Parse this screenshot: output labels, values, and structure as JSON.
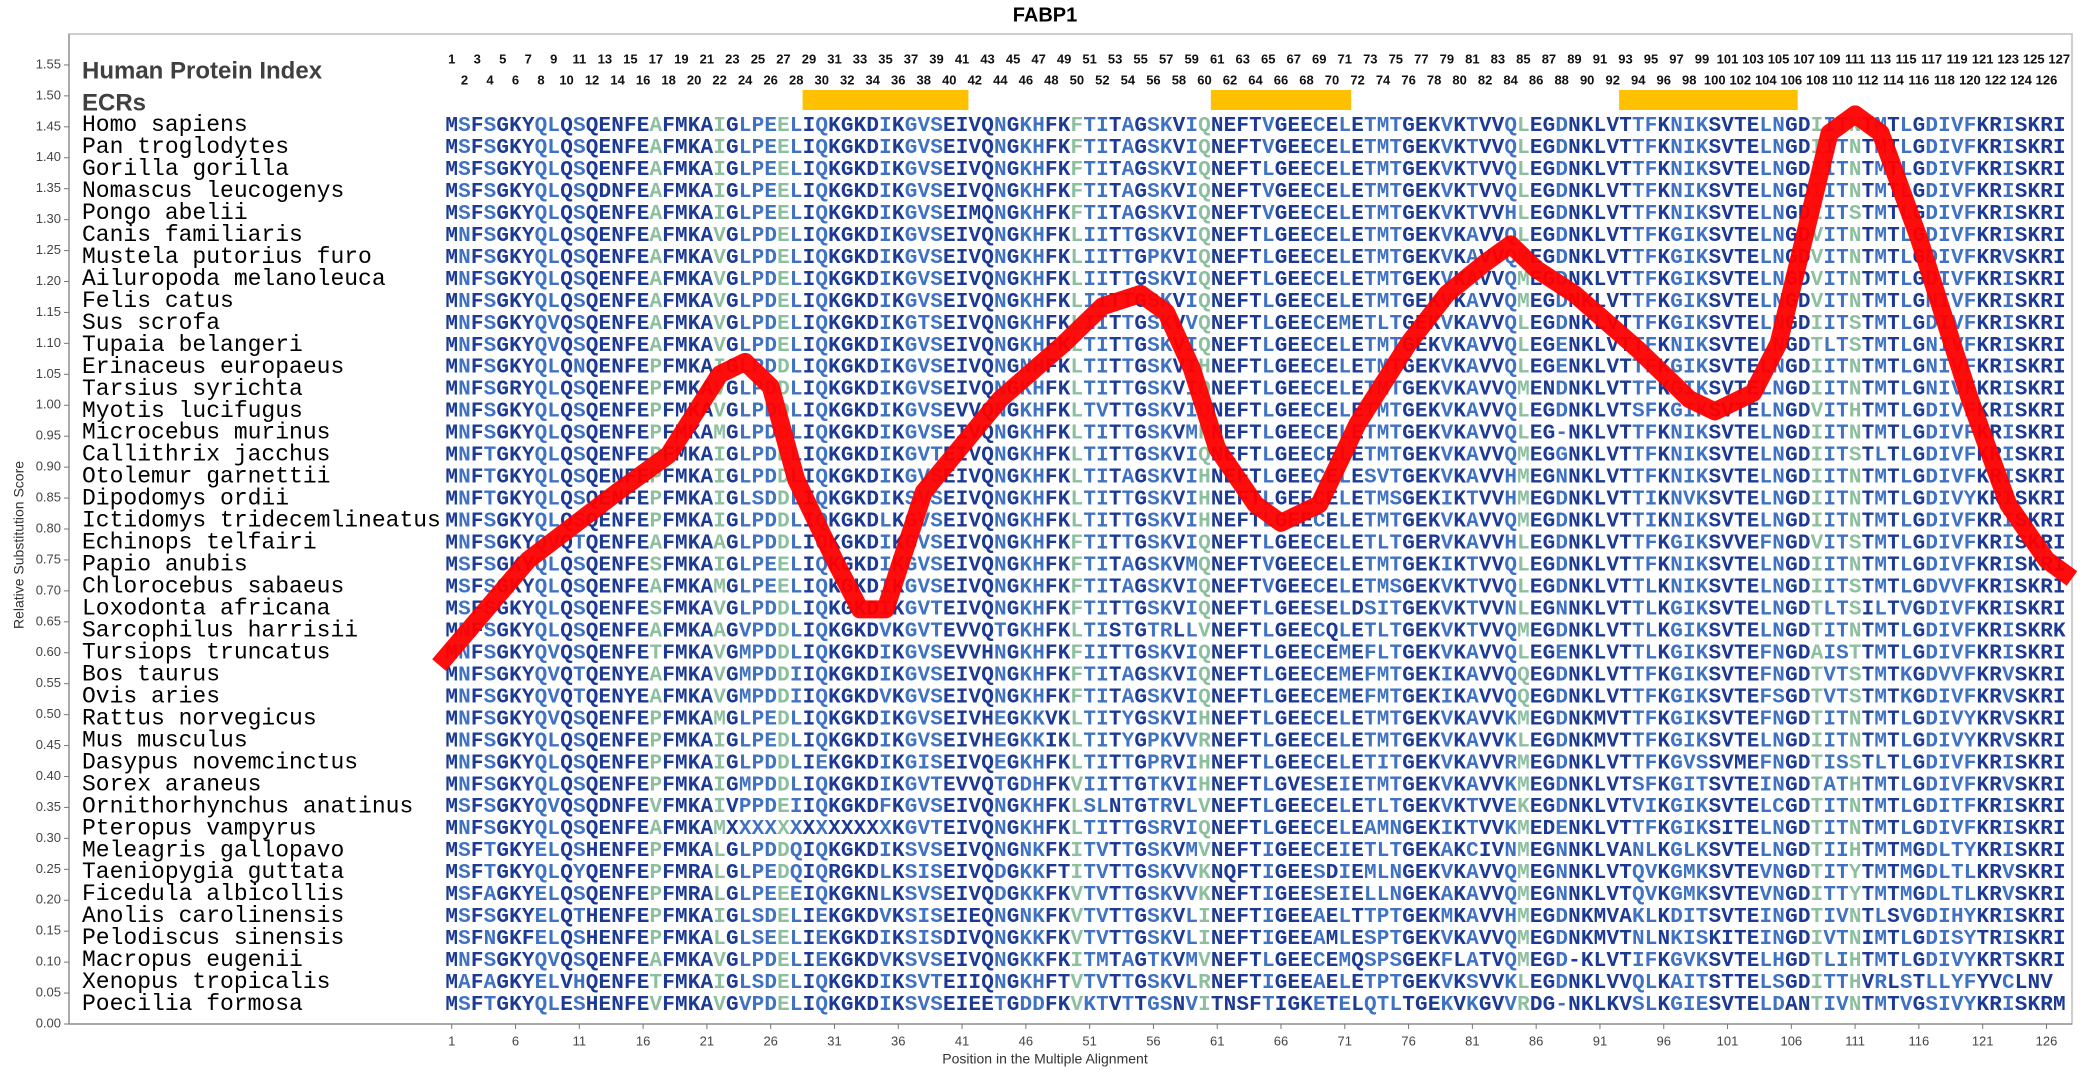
{
  "chart_data": {
    "type": "line",
    "title": "FABP1",
    "heading": "Human Protein Index",
    "ecr_label": "ECRs",
    "xlabel": "Position in the Multiple Alignment",
    "ylabel": "Relative Substitution Score",
    "color": "#ff0000",
    "ecr_color": "#ffc000",
    "conservation_colors": [
      "#1c3a94",
      "#3f72c2",
      "#8cbf9e"
    ],
    "xlim": [
      -29,
      128
    ],
    "ylim": [
      0,
      1.6
    ],
    "xticks": [
      1,
      6,
      11,
      16,
      21,
      26,
      31,
      36,
      41,
      46,
      51,
      56,
      61,
      66,
      71,
      76,
      81,
      86,
      91,
      96,
      101,
      106,
      111,
      116,
      121,
      126
    ],
    "yticks": [
      {
        "value": 0,
        "label": "0.00"
      },
      {
        "value": 0.05,
        "label": "0.05"
      },
      {
        "value": 0.1,
        "label": "0.10"
      },
      {
        "value": 0.15,
        "label": "0.15"
      },
      {
        "value": 0.2,
        "label": "0.20"
      },
      {
        "value": 0.25,
        "label": "0.25"
      },
      {
        "value": 0.3,
        "label": "0.30"
      },
      {
        "value": 0.35,
        "label": "0.35"
      },
      {
        "value": 0.4,
        "label": "0.40"
      },
      {
        "value": 0.45,
        "label": "0.45"
      },
      {
        "value": 0.5,
        "label": "0.50"
      },
      {
        "value": 0.55,
        "label": "0.55"
      },
      {
        "value": 0.6,
        "label": "0.60"
      },
      {
        "value": 0.65,
        "label": "0.65"
      },
      {
        "value": 0.7,
        "label": "0.70"
      },
      {
        "value": 0.75,
        "label": "0.75"
      },
      {
        "value": 0.8,
        "label": "0.80"
      },
      {
        "value": 0.85,
        "label": "0.85"
      },
      {
        "value": 0.9,
        "label": "0.90"
      },
      {
        "value": 0.95,
        "label": "0.95"
      },
      {
        "value": 1,
        "label": "1.00"
      },
      {
        "value": 1.05,
        "label": "1.05"
      },
      {
        "value": 1.1,
        "label": "1.10"
      },
      {
        "value": 1.15,
        "label": "1.15"
      },
      {
        "value": 1.2,
        "label": "1.20"
      },
      {
        "value": 1.25,
        "label": "1.25"
      },
      {
        "value": 1.3,
        "label": "1.30"
      },
      {
        "value": 1.35,
        "label": "1.35"
      },
      {
        "value": 1.4,
        "label": "1.40"
      },
      {
        "value": 1.45,
        "label": "1.45"
      },
      {
        "value": 1.5,
        "label": "1.50"
      },
      {
        "value": 1.55,
        "label": "1.55"
      }
    ],
    "positions": [
      1,
      2,
      3,
      4,
      5,
      6,
      7,
      8,
      9,
      10,
      11,
      12,
      13,
      14,
      15,
      16,
      17,
      18,
      19,
      20,
      21,
      22,
      23,
      24,
      25,
      26,
      27,
      28,
      29,
      30,
      31,
      32,
      33,
      34,
      35,
      36,
      37,
      38,
      39,
      40,
      41,
      42,
      43,
      44,
      45,
      46,
      47,
      48,
      49,
      50,
      51,
      52,
      53,
      54,
      55,
      56,
      57,
      58,
      59,
      60,
      61,
      62,
      63,
      64,
      65,
      66,
      67,
      68,
      69,
      70,
      71,
      72,
      73,
      74,
      75,
      76,
      77,
      78,
      79,
      80,
      81,
      82,
      83,
      84,
      85,
      86,
      87,
      88,
      89,
      90,
      91,
      92,
      93,
      94,
      95,
      96,
      97,
      98,
      99,
      100,
      101,
      102,
      103,
      104,
      105,
      106,
      107,
      108,
      109,
      110,
      111,
      112,
      113,
      114,
      115,
      116,
      117,
      118,
      119,
      120,
      121,
      122,
      123,
      124,
      125,
      126,
      127
    ],
    "ecrs": [
      {
        "start": 29,
        "end": 41
      },
      {
        "start": 61,
        "end": 71
      },
      {
        "start": 93,
        "end": 106
      }
    ],
    "x": [
      0,
      7,
      14,
      18,
      22,
      24,
      26,
      28,
      31,
      33,
      35,
      38,
      44,
      49,
      52,
      55,
      57,
      59,
      61,
      64,
      66,
      69,
      72,
      76,
      79,
      82,
      84,
      86,
      89,
      94,
      98,
      100,
      103,
      105,
      107,
      109,
      111,
      113,
      116,
      120,
      123,
      126,
      128
    ],
    "values": [
      0.58,
      0.75,
      0.86,
      0.92,
      1.05,
      1.07,
      1.03,
      0.88,
      0.75,
      0.67,
      0.67,
      0.86,
      1.01,
      1.1,
      1.16,
      1.18,
      1.15,
      1.06,
      0.93,
      0.84,
      0.81,
      0.84,
      0.97,
      1.1,
      1.18,
      1.23,
      1.26,
      1.22,
      1.18,
      1.09,
      1.01,
      0.99,
      1.02,
      1.1,
      1.27,
      1.44,
      1.47,
      1.44,
      1.27,
      1.01,
      0.84,
      0.75,
      0.72
    ],
    "species": [
      {
        "name": "Homo sapiens",
        "sequence": "MSFSGKYQLQSQENFEAFMKAIGLPEELIQKGKDIKGVSEIVQNGKHFKFTITAGSKVIQNEFTVGEECELETMTGEKVKTVVQLEGDNKLVTTFKNIKSVTELNGDIITNTMTLGDIVFKRISKRI"
      },
      {
        "name": "Pan troglodytes",
        "sequence": "MSFSGKYQLQSQENFEAFMKAIGLPEELIQKGKDIKGVSEIVQNGKHFKFTITAGSKVIQNEFTVGEECELETMTGEKVKTVVQLEGDNKLVTTFKNIKSVTELNGDIITNTMTLGDIVFKRISKRI"
      },
      {
        "name": "Gorilla gorilla",
        "sequence": "MSFSGKYQLQSQENFEAFMKAIGLPEELIQKGKDIKGVSEIVQNGKHFKFTITAGSKVIQNEFTLGEECELETMTGEKVKTVVQLEGDNKLVTTFKNIKSVTELNGDIITNTMTLGDIVFKRISKRI"
      },
      {
        "name": "Nomascus leucogenys",
        "sequence": "MSFSGKYQLQSQDNFEAFMKAIGLPEELIQKGKDIKGVSEIVQNGKHFKFTITAGSKVIQNEFTVGEECELETMTGEKVKTVVQLEGDNKLVTTFKNIKSVTELNGDIITNTMTLGDIVFKRISKRI"
      },
      {
        "name": "Pongo abelii",
        "sequence": "MSFSGKYQLQSQENFEAFMKAIGLPEELIQKGKDIKGVSEIMQNGKHFKFTITAGSKVIQNEFTVGEECELETMTGEKVKTVVHLEGDNKLVTTFKNIKSVTELNGDIITSTMTLGDIVFKRISKRI"
      },
      {
        "name": "Canis familiaris",
        "sequence": "MNFSGKYQLQSQENFEAFMKAVGLPDELIQKGKDIKGVSEIVQNGKHFKLIITTGSKVIQNEFTLGEECELETMTGEKVKAVVQLEGDNKLVTTFKGIKSVTELNGDVITNTMTLGDIVFKRISKRI"
      },
      {
        "name": "Mustela putorius furo",
        "sequence": "MNFSGKYQLQSQENFEAFMKAVGLPDELIQKGKDIKGVSEIVQNGKHFKLIITTGPKVIQNEFTLGEECELETMTGEKVKAVVQMEGDNKLVTTFKGIKSVTELNGDVITNTMTLGDIVFKRVSKRI"
      },
      {
        "name": "Ailuropoda melanoleuca",
        "sequence": "MNFSGKYQLQSQENFEAFMKAVGLPDELIQKGKDIKGVSEIVQNGKHFKLIITTGSKVIQNEFTLGEECELETMTGEKVKAVVQMEGDNKLVTTFKGIKSVTELNGDVITNTMTLGDIVFKRISKRI"
      },
      {
        "name": "Felis catus",
        "sequence": "MNFSGKYQLQSQENFEAFMKAVGLPDELIQKGKDIKGVSEIVQNGKHFKLIITTGSKVIQNEFTLGEECELETMTGEKVKAVVQMEGDNKLVTTFKGIKSVTELNGDVITNTMTLGNIVFKRISKRI"
      },
      {
        "name": "Sus scrofa",
        "sequence": "MNFSGKYQVQSQENFEAFMKAVGLPDELIQKGKDIKGTSEIVQNGKHFKLIITTGSKVVQNEFTLGEECEMETLTGEKVKAVVQLEGDNKLVTTFKGIKSVTELNGDIITSTMTLGDIVFKRISKRI"
      },
      {
        "name": "Tupaia belangeri",
        "sequence": "MNFSGKYQVQSQENFEAFMKAVGLPDELIQKGKDIKGVSEIVQNGKHFKLTITTGSKVIQNEFTLGEECELETMTGEKVKAVVQLEGENKLVTTFKNIKSVTELNGDTLTSTMTLGNIVFKRISKRI"
      },
      {
        "name": "Erinaceus europaeus",
        "sequence": "MNFSGKYQLQNQENFEPFMKAIGLPDDLIQKGKDIKGVSEIVQNGNHFKLTITTGSKVIHNEFTLGEECELETMTGEKVKAVVQLEGENKLVTTFKGIKSVTELNGDIITNTMTLGNIVFKRISKRI"
      },
      {
        "name": "Tarsius syrichta",
        "sequence": "MNFSGRYQLQSQENFEPFMKAVGLPDDLIQKGKDIKGVSEIVQNGKHFKLTITTGSKVIQNEFTLGEECELETMTGEKVKAVVQMENDNKLVTTFKGIKSVTELNGDIITNTMTLGNIVFKRISKRI"
      },
      {
        "name": "Myotis lucifugus",
        "sequence": "MNFSGKYQLQSQENFEPFMKAVGLPDDLIQKGKDIKGVSEVVQNGKHFKLTVTTGSKVIQNEFTLGEECELETMTGEKVKAVVQLEGDNKLVTSFKGIKSVTELNGDVITHTMTLGDIVFKRISKRI"
      },
      {
        "name": "Microcebus murinus",
        "sequence": "MNFSGKYQLQSQENFEPFMKAMGLPDDLIQKGKDIKGVSEIVQNGKHFKLTITTGSKVMHNEFTLGEECELETMTGEKVKAVVQLEG-NKLVTTFKNIKSVTELNGDIITNTMTLGDIVFKRISKRI"
      },
      {
        "name": "Callithrix jacchus",
        "sequence": "MNFTGKYQLQSQENFEPFMKAIGLPDELIQKGKDIKGVTEIVQNGKHFKLTITTGSKVIQNEFTLGEECELETMTGEKVKAVVQMEGGNKLVTTFKNIKSVTELNGDIITSTLTLGDIVFKRISKRI"
      },
      {
        "name": "Otolemur garnettii",
        "sequence": "MNFTGKYQLQSQENFEPFMKAIGLPDDLIQKGKDIKGVSEIVQNGKHFKLTITAGSKVIHNEFTLGEECELESVTGEKVKAVVHMEGNNKLVTTFKNIKSVTELNGDIITNTMTLGDIVFKRISKRI"
      },
      {
        "name": "Dipodomys ordii",
        "sequence": "MNFTGKYQLQSQENFEPFMKAIGLSDDLIQKGKDIKSVSEIVQNGKHFKLTITTGSKVIHNEFTLGEECELETMSGEKIKTVVHMEGDNKLVTTIKNVKSVTELNGDIITNTMTLGDIVYKRISKRI"
      },
      {
        "name": "Ictidomys tridecemlineatus",
        "sequence": "MNFSGKYQLQSQENFEPFMKAIGLPDDLIQKGKDLKGVSEIVQNGKHFKLTITTGSKVIHNEFTLGEECELETMTGEKVKAVVQMEGDNKLVTTIKNIKSVTELNGDIITNTMTLGDIVFKRISKRI"
      },
      {
        "name": "Echinops telfairi",
        "sequence": "MNFSGKYQVQTQENFEAFMKAAGLPDDLIQKGKDIKGVSEIVQNGKHFKFTITTGSKVIQNEFTLGEECELETLTGERVKAVVHLEGDNKLVTTFKGIKSVVEFNGDVITSTMTLGDIVFKRISKRI"
      },
      {
        "name": "Papio anubis",
        "sequence": "MSFSGKYQLQSQENFESFMKAIGLPEELIQKGKDIKGVSEIVQNGKHFKFTITAGSKVMQNEFTVGEECELETMTGEKIKTVVQLEGDNKLVTTFKNIKSVTELNGDIITNTMTLGDIVFKRISKRI"
      },
      {
        "name": "Chlorocebus sabaeus",
        "sequence": "MSFSGKYQLQSQENFEAFMKAMGLPEELIQKGKDIKGVSEIVQNGKHFKFTITAGSKVIQNEFTVGEECELETMSGEKVKTVVQLEGDNKLVTTLKNIKSVTELNGDIITSTMTLGDVVFKRISKRI"
      },
      {
        "name": "Loxodonta africana",
        "sequence": "MSFSGKYQLQSQENFESFMKAVGLPDDLIQKGKDIKGVTEIVQNGKHFKFTITTGSKVIQNEFTLGEESELDSITGEKVKTVVNLEGNNKLVTTLKGIKSVTELNGDTLTSILTVGDIVFKRISKRI"
      },
      {
        "name": "Sarcophilus harrisii",
        "sequence": "MNFSGKYQLQSQENFEAFMKAAGVPDDLIQKGKDVKGVTEVVQTGKHFKLTISTGTRLLVNEFTLGEECQLETLTGEKVKTVVQMEGDNKLVTTLKGIKSVTELNGDTITNTMTLGDIVFKRISKRK"
      },
      {
        "name": "Tursiops truncatus",
        "sequence": "MNFSGKYQVQSQENFETFMKAVGMPDDLIQKGKDIKGVSEVVHNGKHFKFIITTGSKVIQNEFTLGEECEMEFLTGEKVKAVVQLEGENKLVTTLKGIKSVTEFNGDAISTTMTLGDIVFKRISKRI"
      },
      {
        "name": "Bos taurus",
        "sequence": "MNFSGKYQVQTQENYEAFMKAVGMPDDIIQKGKDIKGVSEIVQNGKHFKFTITAGSKVIQNEFTLGEECEMEFMTGEKIKAVVQQEGDNKLVTTFKGIKSVTEFNGDTVTSTMTKGDVVFKRVSKRI"
      },
      {
        "name": "Ovis aries",
        "sequence": "MNFSGKYQVQTQENYEAFMKAVGMPDDIIQKGKDVKGVSEIVQNGKHFKFTITAGSKVIQNEFTLGEECEMEFMTGEKIKAVVQQEGDNKLVTTFKGIKSVTEFSGDTVTSTMTKGDIVFKRVSKRI"
      },
      {
        "name": "Rattus norvegicus",
        "sequence": "MNFSGKYQVQSQENFEPFMKAMGLPEDLIQKGKDIKGVSEIVHEGKKVKLTITYGSKVIHNEFTLGEECELETMTGEKVKAVVKMEGDNKMVTTFKGIKSVTEFNGDTITNTMTLGDIVYKRVSKRI"
      },
      {
        "name": "Mus musculus",
        "sequence": "MNFSGKYQLQSQENFEPFMKAIGLPEDLIQKGKDIKGVSEIVHEGKKIKLTITYGPKVVRNEFTLGEECELETMTGEKVKAVVKLEGDNKMVTTFKGIKSVTELNGDIITNTMTLGDIVYKRVSKRI"
      },
      {
        "name": "Dasypus novemcinctus",
        "sequence": "MNFSGKYQLQSQENFEPFMKAIGLPDDLIEKGKDIKGISEIVQEGKHFKLTITTGPRVIHNEFTLGEECELETITGEKVKAVVRMEGDNKLVTTFKGVSSVMEFNGDTISSTLTLGDIVFKRISKRI"
      },
      {
        "name": "Sorex araneus",
        "sequence": "MNFSGKYQLQSQENFEPFMKAIGMPDDLIQKGKDIKGVTEVVQTGDHFKVIITTGTKVIHNEFTLGVESEIETMTGEKVKAVVKMEGDNKLVTSFKGITSVTEINGDTATHTMTLGDIVFKRVSKRI"
      },
      {
        "name": "Ornithorhynchus anatinus",
        "sequence": "MSFSGKYQVQSQDNFEVFMKAIVPPDEIIQKGKDFKGVSEIVQNGKHFKLSLNTGTRVLVNEFTLGEECELETLTGEKVKTVVEKEGDNKLVTVIKGIKSVTELCGDTITNTMTLGDITFKRISKRI"
      },
      {
        "name": "Pteropus vampyrus",
        "sequence": "MNFSGKYQLQSQENFEAFMKAMXXXXXXXXXXXXXKGVTEIVQNGKHFKLTITTGSRVIQNEFTLGEECELEAMNGEKIKTVVKMEDENKLVTTFKGIKSITELNGDTITNTMTLGDIVFKRISKRI"
      },
      {
        "name": "Meleagris gallopavo",
        "sequence": "MSFTGKYELQSHENFEPFMKALGLPDDQIQKGKDIKSVSEIVQNGNKFKITVTTGSKVMVNEFTIGEECEIETLTGEKAKCIVNMEGNNKLVANLKGLKSVTELNGDTIIHTMTMGDLTYKRISKRI"
      },
      {
        "name": "Taeniopygia guttata",
        "sequence": "MSFTGKYQLQYQENFEPFMRALGLPEDQIQRGKDLKSISEIVQDGKKFTITVTTGSKVVKNQFTIGEESDIEMLNGEKVKAVVQMEGNNKLVTQVKGMKSVTEVNGDTITYTMTMGDLTLKRVSKRI"
      },
      {
        "name": "Ficedula albicollis",
        "sequence": "MSFAGKYELQSQENFEPFMRALGLPEEEIQKGKNLKSVSEIVQDGKKFKVTVTTGSKVVKNEFTIGEESEIELLNGEKAKAVVQMEGNNKLVTQVKGMKSVTEVNGDITTYTMTMGDLTLKRVSKRI"
      },
      {
        "name": "Anolis carolinensis",
        "sequence": "MSFSGKYELQTHENFEPFMKAIGLSDELIEKGKDVKSISEIEQNGNKFKVTVTTGSKVLINEFTIGEEAELTTPTGEKMKAVVHMEGDNKMVAKLKDITSVTEINGDTIVNTLSVGDIHYKRISKRI"
      },
      {
        "name": "Pelodiscus sinensis",
        "sequence": "MSFNGKFELQSHENFEPFMKALGLSEELIEKGKDIKSISDIVQNGKKFKVTVTTGSKVLINEFTIGEEAMLESPTGEKVKAVVQMEGDNKMVTNLNKISKITEINGDIVTNIMTLGDISYTRISKRI"
      },
      {
        "name": "Macropus eugenii",
        "sequence": "MNFSGKYQVQSQENFEAFMKAVGLPDELIEKGKDVKSVSEIVQNGKKFKITMTAGTKVMVNEFTLGEECEMQSPSGEKFLATVQMEGD-KLVTIFKGVKSVTELHGDTLIHTMTLGDIVYKRTSKRI"
      },
      {
        "name": "Xenopus tropicalis",
        "sequence": "MAFAGKYELVHQENFETFMKAIGLSDELIQKGKDIKSVTEIIQNGKHFTVTVTTGSKVLRNEFTIGEEAELETPTGEKVKSVVKLEGDNKLVVQLKAITSTTELSGDITTHVRLSTLLYFYVCLNV"
      },
      {
        "name": "Poecilia formosa",
        "sequence": "MSFTGKYQLESHENFEVFMKAVGVPDELIQKGKDIKSVSEIEETGDDFKVKTVTTGSNVITNSFTIGKETELQTLTGEKVKGVVRDG-NKLKVSLKGIESVTELDANTIVNTMTVGSIVYKRISKRM"
      }
    ]
  }
}
